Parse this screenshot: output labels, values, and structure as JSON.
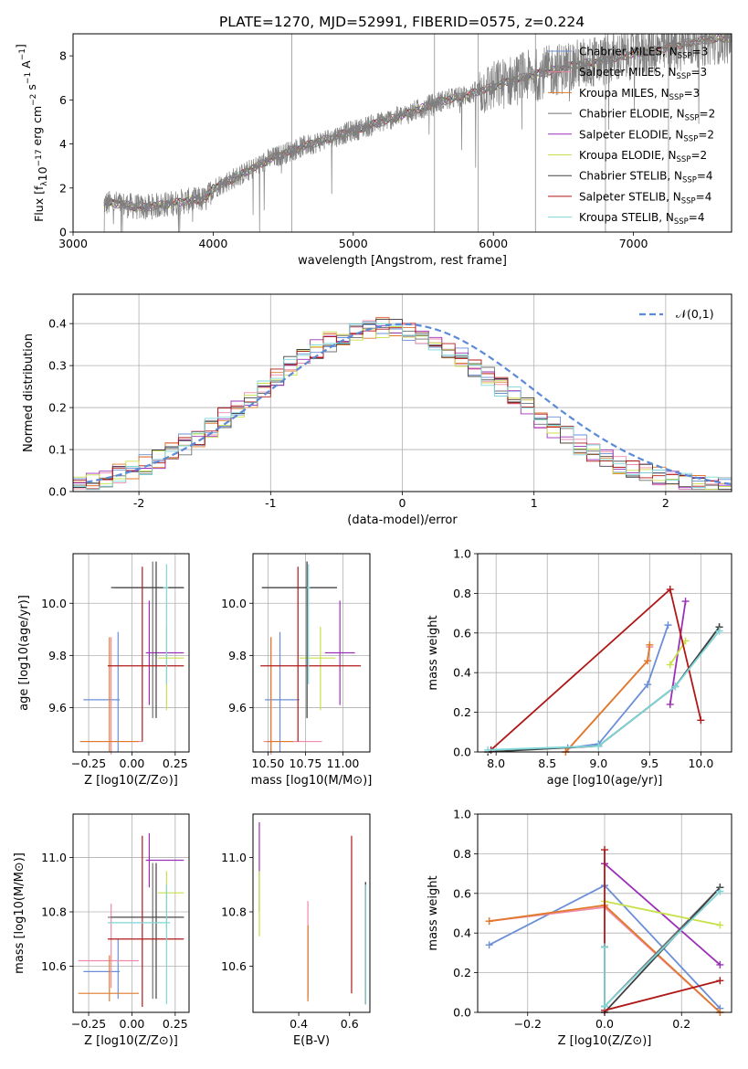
{
  "figure": {
    "title": "PLATE=1270, MJD=52991, FIBERID=0575, z=0.224"
  },
  "series_styles": [
    {
      "name": "Chabrier MILES",
      "nssp": "3",
      "color": "#6a8fd8"
    },
    {
      "name": "Salpeter MILES",
      "nssp": "3",
      "color": "#f08aa8"
    },
    {
      "name": "Kroupa MILES",
      "nssp": "3",
      "color": "#e07a2a"
    },
    {
      "name": "Chabrier ELODIE",
      "nssp": "2",
      "color": "#707070"
    },
    {
      "name": "Salpeter ELODIE",
      "nssp": "2",
      "color": "#9b30b8"
    },
    {
      "name": "Kroupa ELODIE",
      "nssp": "2",
      "color": "#c8e04a"
    },
    {
      "name": "Chabrier STELIB",
      "nssp": "4",
      "color": "#404040"
    },
    {
      "name": "Salpeter STELIB",
      "nssp": "4",
      "color": "#b01818"
    },
    {
      "name": "Kroupa STELIB",
      "nssp": "4",
      "color": "#7fd6d8"
    }
  ],
  "chart_data": [
    {
      "id": "spectrum",
      "type": "line",
      "xlabel": "wavelength [Angstrom, rest frame]",
      "ylabel": "Flux [f_λ10^-17 erg cm^-2 s^-1 A^-1]",
      "xlim": [
        3000,
        7700
      ],
      "ylim": [
        0,
        9
      ],
      "xticks": [
        3000,
        4000,
        5000,
        6000,
        7000
      ],
      "yticks": [
        0,
        2,
        4,
        6,
        8
      ],
      "legend": "top-right",
      "continuum": {
        "x": [
          3220,
          3300,
          3500,
          3600,
          3800,
          3950,
          4000,
          4200,
          4400,
          4600,
          4800,
          5000,
          5200,
          5400,
          5600,
          5800,
          6000,
          6200,
          6400,
          6600,
          6800,
          7000,
          7200,
          7400,
          7600
        ],
        "y": [
          1.3,
          1.3,
          1.1,
          1.2,
          1.4,
          1.5,
          2.0,
          2.6,
          3.3,
          3.8,
          4.2,
          4.6,
          5.0,
          5.4,
          5.9,
          6.2,
          6.6,
          7.0,
          7.3,
          7.6,
          7.8,
          8.1,
          8.3,
          8.6,
          8.8
        ]
      },
      "data_range": {
        "x": [
          3220,
          7700
        ],
        "y": [
          0,
          9
        ]
      }
    },
    {
      "id": "residuals",
      "type": "histogram",
      "xlabel": "(data-model)/error",
      "ylabel": "Normed distribution",
      "xlim": [
        -2.5,
        2.5
      ],
      "ylim": [
        0,
        0.47
      ],
      "xticks": [
        -2,
        -1,
        0,
        1,
        2
      ],
      "yticks": [
        0.0,
        0.1,
        0.2,
        0.3,
        0.4
      ],
      "grid": true,
      "legend": "top-right",
      "reference_label": "𝒩(0,1)",
      "reference_color": "#5b8ad6",
      "bin_width": 0.1
    },
    {
      "id": "age_vs_Z",
      "type": "errorbar",
      "xlabel": "Z [log10(Z/Z⊙)]",
      "ylabel": "age  [log10(age/yr)]",
      "xlim": [
        -0.34,
        0.33
      ],
      "ylim": [
        9.43,
        10.19
      ],
      "xticks": [
        -0.25,
        0.0,
        0.25
      ],
      "xticklabels": [
        "−0.25",
        "0.00",
        "0.25"
      ],
      "yticks": [
        9.6,
        9.8,
        10.0
      ],
      "grid": true,
      "points": [
        {
          "s": 0,
          "x": -0.08,
          "xerr": [
            0.2,
            0.01
          ],
          "y": 9.63,
          "yerr": [
            0.2,
            0.26
          ]
        },
        {
          "s": 1,
          "x": -0.12,
          "xerr": [
            0.17,
            0.18
          ],
          "y": 9.47,
          "yerr": [
            0.05,
            0.4
          ]
        },
        {
          "s": 2,
          "x": -0.13,
          "xerr": [
            0.17,
            0.17
          ],
          "y": 9.47,
          "yerr": [
            0.04,
            0.4
          ]
        },
        {
          "s": 3,
          "x": 0.12,
          "xerr": [
            0.22,
            0.18
          ],
          "y": 10.06,
          "yerr": [
            0.5,
            0.1
          ]
        },
        {
          "s": 4,
          "x": 0.1,
          "xerr": [
            0.02,
            0.2
          ],
          "y": 9.81,
          "yerr": [
            0.2,
            0.2
          ]
        },
        {
          "s": 5,
          "x": 0.2,
          "xerr": [
            0.05,
            0.1
          ],
          "y": 9.79,
          "yerr": [
            0.2,
            0.12
          ]
        },
        {
          "s": 6,
          "x": 0.14,
          "xerr": [
            0.26,
            0.16
          ],
          "y": 10.06,
          "yerr": [
            0.5,
            0.1
          ]
        },
        {
          "s": 7,
          "x": 0.06,
          "xerr": [
            0.2,
            0.24
          ],
          "y": 9.76,
          "yerr": [
            0.29,
            0.38
          ]
        },
        {
          "s": 8,
          "x": 0.2,
          "xerr": [
            0.02,
            0.01
          ],
          "y": 10.06,
          "yerr": [
            0.37,
            0.09
          ]
        }
      ]
    },
    {
      "id": "age_vs_mass",
      "type": "errorbar",
      "xlabel": "mass [log10(M/M⊙)]",
      "xlim": [
        10.4,
        11.18
      ],
      "ylim": [
        9.43,
        10.19
      ],
      "xticks": [
        10.5,
        10.75,
        11.0
      ],
      "xticklabels": [
        "10.50",
        "10.75",
        "11.00"
      ],
      "yticks": [
        9.6,
        9.8,
        10.0
      ],
      "grid": true,
      "points": [
        {
          "s": 0,
          "x": 10.58,
          "xerr": [
            0.1,
            0.13
          ],
          "y": 9.63,
          "yerr": [
            0.2,
            0.26
          ]
        },
        {
          "s": 1,
          "x": 10.52,
          "xerr": [
            0.05,
            0.34
          ],
          "y": 9.47,
          "yerr": [
            0.05,
            0.4
          ]
        },
        {
          "s": 2,
          "x": 10.52,
          "xerr": [
            0.03,
            0.15
          ],
          "y": 9.47,
          "yerr": [
            0.04,
            0.4
          ]
        },
        {
          "s": 3,
          "x": 10.76,
          "xerr": [
            0.3,
            0.2
          ],
          "y": 10.06,
          "yerr": [
            0.5,
            0.1
          ]
        },
        {
          "s": 4,
          "x": 10.98,
          "xerr": [
            0.1,
            0.1
          ],
          "y": 9.81,
          "yerr": [
            0.2,
            0.2
          ]
        },
        {
          "s": 5,
          "x": 10.85,
          "xerr": [
            0.14,
            0.1
          ],
          "y": 9.79,
          "yerr": [
            0.2,
            0.12
          ]
        },
        {
          "s": 6,
          "x": 10.76,
          "xerr": [
            0.3,
            0.2
          ],
          "y": 10.06,
          "yerr": [
            0.5,
            0.1
          ]
        },
        {
          "s": 7,
          "x": 10.7,
          "xerr": [
            0.25,
            0.42
          ],
          "y": 9.76,
          "yerr": [
            0.29,
            0.38
          ]
        },
        {
          "s": 8,
          "x": 10.77,
          "xerr": [
            0.01,
            0.01
          ],
          "y": 10.06,
          "yerr": [
            0.37,
            0.09
          ]
        }
      ]
    },
    {
      "id": "weight_vs_age",
      "type": "line",
      "xlabel": "age  [log10(age/yr)]",
      "ylabel": "mass weight",
      "xlim": [
        7.82,
        10.3
      ],
      "ylim": [
        0,
        1
      ],
      "xticks": [
        8.0,
        8.5,
        9.0,
        9.5,
        10.0
      ],
      "xticklabels": [
        "8.0",
        "8.5",
        "9.0",
        "9.5",
        "10.0"
      ],
      "yticks": [
        0.0,
        0.2,
        0.4,
        0.6,
        0.8,
        1.0
      ],
      "grid": true,
      "series": [
        {
          "s": 0,
          "x": [
            8.7,
            9.0,
            9.48,
            9.68
          ],
          "y": [
            0.02,
            0.04,
            0.34,
            0.64
          ]
        },
        {
          "s": 1,
          "x": [
            8.68,
            9.48,
            9.5
          ],
          "y": [
            0.0,
            0.46,
            0.53
          ]
        },
        {
          "s": 2,
          "x": [
            8.68,
            9.48,
            9.5
          ],
          "y": [
            0.0,
            0.46,
            0.54
          ]
        },
        {
          "s": 3,
          "x": [
            9.0,
            9.75,
            10.18
          ],
          "y": [
            0.03,
            0.33,
            0.63
          ]
        },
        {
          "s": 4,
          "x": [
            9.7,
            9.85
          ],
          "y": [
            0.24,
            0.76
          ]
        },
        {
          "s": 5,
          "x": [
            9.7,
            9.85
          ],
          "y": [
            0.44,
            0.56
          ]
        },
        {
          "s": 6,
          "x": [
            7.92,
            9.0,
            9.75,
            10.18
          ],
          "y": [
            0.0,
            0.03,
            0.33,
            0.63
          ]
        },
        {
          "s": 7,
          "x": [
            7.95,
            9.7,
            10.0
          ],
          "y": [
            0.01,
            0.82,
            0.16
          ]
        },
        {
          "s": 8,
          "x": [
            7.92,
            9.0,
            9.75,
            10.18
          ],
          "y": [
            0.01,
            0.03,
            0.33,
            0.61
          ]
        }
      ]
    },
    {
      "id": "mass_vs_Z",
      "type": "errorbar",
      "xlabel": "Z [log10(Z/Z⊙)]",
      "ylabel": "mass [log10(M/M⊙)]",
      "xlim": [
        -0.34,
        0.33
      ],
      "ylim": [
        10.43,
        11.16
      ],
      "xticks": [
        -0.25,
        0.0,
        0.25
      ],
      "xticklabels": [
        "−0.25",
        "0.00",
        "0.25"
      ],
      "yticks": [
        10.6,
        10.8,
        11.0
      ],
      "grid": true,
      "points": [
        {
          "s": 0,
          "x": -0.08,
          "xerr": [
            0.2,
            0.01
          ],
          "y": 10.58,
          "yerr": [
            0.1,
            0.12
          ]
        },
        {
          "s": 1,
          "x": -0.12,
          "xerr": [
            0.19,
            0.16
          ],
          "y": 10.62,
          "yerr": [
            0.1,
            0.21
          ]
        },
        {
          "s": 2,
          "x": -0.13,
          "xerr": [
            0.18,
            0.17
          ],
          "y": 10.5,
          "yerr": [
            0.03,
            0.14
          ]
        },
        {
          "s": 3,
          "x": 0.12,
          "xerr": [
            0.26,
            0.18
          ],
          "y": 10.78,
          "yerr": [
            0.3,
            0.2
          ]
        },
        {
          "s": 4,
          "x": 0.1,
          "xerr": [
            0.02,
            0.2
          ],
          "y": 10.99,
          "yerr": [
            0.1,
            0.1
          ]
        },
        {
          "s": 5,
          "x": 0.2,
          "xerr": [
            0.05,
            0.1
          ],
          "y": 10.87,
          "yerr": [
            0.13,
            0.08
          ]
        },
        {
          "s": 6,
          "x": 0.14,
          "xerr": [
            0.26,
            0.16
          ],
          "y": 10.78,
          "yerr": [
            0.3,
            0.2
          ]
        },
        {
          "s": 7,
          "x": 0.06,
          "xerr": [
            0.2,
            0.24
          ],
          "y": 10.7,
          "yerr": [
            0.25,
            0.38
          ]
        },
        {
          "s": 8,
          "x": 0.2,
          "xerr": [
            0.34,
            0.02
          ],
          "y": 10.76,
          "yerr": [
            0.3,
            0.14
          ]
        }
      ]
    },
    {
      "id": "mass_vs_ebv",
      "type": "errorbar",
      "xlabel": "E(B-V)",
      "xlim": [
        0.22,
        0.68
      ],
      "ylim": [
        10.43,
        11.16
      ],
      "xticks": [
        0.4,
        0.6
      ],
      "xticklabels": [
        "0.4",
        "0.6"
      ],
      "yticks": [
        10.6,
        10.8,
        11.0
      ],
      "grid": false,
      "points": [
        {
          "s": 0,
          "x": 0.436,
          "xerr": [
            0,
            0
          ],
          "y": 10.62,
          "yerr": [
            0.14,
            0.13
          ]
        },
        {
          "s": 1,
          "x": 0.436,
          "xerr": [
            0,
            0
          ],
          "y": 10.65,
          "yerr": [
            0.16,
            0.19
          ]
        },
        {
          "s": 2,
          "x": 0.436,
          "xerr": [
            0,
            0
          ],
          "y": 10.63,
          "yerr": [
            0.16,
            0.12
          ]
        },
        {
          "s": 3,
          "x": 0.663,
          "xerr": [
            0,
            0
          ],
          "y": 10.68,
          "yerr": [
            0.22,
            0.23
          ]
        },
        {
          "s": 4,
          "x": 0.245,
          "xerr": [
            0,
            0
          ],
          "y": 10.97,
          "yerr": [
            0.17,
            0.16
          ]
        },
        {
          "s": 5,
          "x": 0.245,
          "xerr": [
            0,
            0
          ],
          "y": 10.83,
          "yerr": [
            0.12,
            0.12
          ]
        },
        {
          "s": 6,
          "x": 0.663,
          "xerr": [
            0,
            0
          ],
          "y": 10.68,
          "yerr": [
            0.22,
            0.23
          ]
        },
        {
          "s": 7,
          "x": 0.608,
          "xerr": [
            0,
            0
          ],
          "y": 10.78,
          "yerr": [
            0.28,
            0.3
          ]
        },
        {
          "s": 8,
          "x": 0.663,
          "xerr": [
            0,
            0
          ],
          "y": 10.68,
          "yerr": [
            0.22,
            0.22
          ]
        }
      ]
    },
    {
      "id": "weight_vs_Z",
      "type": "line",
      "xlabel": "Z [log10(Z/Z⊙)]",
      "ylabel": "mass weight",
      "xlim": [
        -0.33,
        0.33
      ],
      "ylim": [
        0,
        1
      ],
      "xticks": [
        -0.2,
        0.0,
        0.2
      ],
      "xticklabels": [
        "−0.2",
        "0.0",
        "0.2"
      ],
      "yticks": [
        0.0,
        0.2,
        0.4,
        0.6,
        0.8,
        1.0
      ],
      "grid": true,
      "series": [
        {
          "s": 0,
          "x": [
            -0.3,
            0.0,
            0.3
          ],
          "y": [
            0.34,
            0.64,
            0.02
          ]
        },
        {
          "s": 1,
          "x": [
            -0.3,
            0.0,
            0.3
          ],
          "y": [
            0.46,
            0.53,
            0.0
          ]
        },
        {
          "s": 2,
          "x": [
            -0.3,
            0.0,
            0.3
          ],
          "y": [
            0.46,
            0.54,
            0.0
          ]
        },
        {
          "s": 3,
          "x": [
            0.0,
            0.0,
            0.3
          ],
          "y": [
            0.33,
            0.03,
            0.63
          ]
        },
        {
          "s": 4,
          "x": [
            0.0,
            0.3
          ],
          "y": [
            0.75,
            0.24
          ]
        },
        {
          "s": 5,
          "x": [
            0.0,
            0.3
          ],
          "y": [
            0.56,
            0.44
          ]
        },
        {
          "s": 6,
          "x": [
            0.0,
            0.0,
            0.3
          ],
          "y": [
            0.33,
            0.0,
            0.63
          ]
        },
        {
          "s": 7,
          "x": [
            0.0,
            0.0,
            0.3
          ],
          "y": [
            0.82,
            0.01,
            0.16
          ]
        },
        {
          "s": 8,
          "x": [
            0.0,
            0.0,
            0.3
          ],
          "y": [
            0.33,
            0.03,
            0.61
          ]
        }
      ]
    }
  ]
}
